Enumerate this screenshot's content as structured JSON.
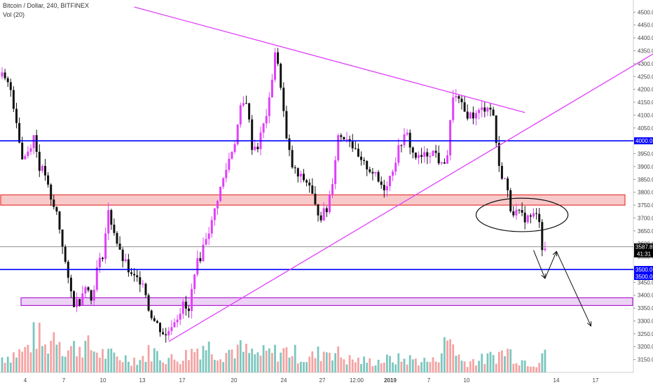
{
  "header": {
    "title": "Bitcoin / Dollar, 240, BITFINEX",
    "volume_label": "Vol (20)"
  },
  "colors": {
    "up_candle": "#e040fb",
    "down_candle": "#111111",
    "volume_up": "#7cc7bf",
    "volume_down": "#f4a3a3",
    "trendline": "#e040fb",
    "support_line": "#0000ff",
    "resistance_zone_border": "#e53935",
    "resistance_zone_fill": "#f8c9c9",
    "support_zone_border": "#b020d0",
    "support_zone_fill": "#ecd2f5",
    "price_label_bg": "#000000",
    "level_label_bg": "#0000ff"
  },
  "chart_data": {
    "type": "candlestick",
    "symbol": "Bitcoin / Dollar",
    "interval": "240",
    "exchange": "BITFINEX",
    "ylim": [
      3100,
      4520
    ],
    "y_ticks": [
      3150,
      3200,
      3250,
      3300,
      3350,
      3400,
      3450,
      3500,
      3550,
      3600,
      3650,
      3700,
      3750,
      3800,
      3850,
      3900,
      3950,
      4000,
      4050,
      4100,
      4150,
      4200,
      4250,
      4300,
      4350,
      4400,
      4450,
      4500
    ],
    "x_ticks": [
      "4",
      "7",
      "10",
      "13",
      "17",
      "20",
      "24",
      "27",
      "12:00",
      "2019",
      "7",
      "10",
      "14",
      "17"
    ],
    "horizontal_levels": [
      {
        "label": "4000.0",
        "value": 4000
      },
      {
        "label": "3500.0",
        "value": 3500
      }
    ],
    "level_label_extra": "3500.0",
    "current_price": {
      "label": "3587.8",
      "value": 3587.8,
      "countdown": "41:31"
    },
    "zones": [
      {
        "name": "resistance",
        "from": 3750,
        "to": 3790
      },
      {
        "name": "support",
        "from": 3360,
        "to": 3390
      }
    ],
    "trendlines": [
      {
        "from": {
          "bar": 46,
          "price": 4520
        },
        "to": {
          "bar": 182,
          "price": 4110
        }
      },
      {
        "from": {
          "bar": 58,
          "price": 3220
        },
        "to": {
          "bar": 227,
          "price": 4340
        }
      }
    ],
    "projection_path": [
      {
        "bar": 185,
        "price": 3575
      },
      {
        "bar": 189,
        "price": 3465
      },
      {
        "bar": 193,
        "price": 3570
      },
      {
        "bar": 205,
        "price": 3280
      }
    ],
    "highlight_ellipse": {
      "center_bar": 181,
      "center_price": 3712,
      "bar_radius": 16,
      "price_radius": 65
    },
    "close_anchors": [
      [
        0,
        4250
      ],
      [
        3,
        4200
      ],
      [
        5,
        4080
      ],
      [
        7,
        3930
      ],
      [
        9,
        3960
      ],
      [
        11,
        4020
      ],
      [
        13,
        3900
      ],
      [
        15,
        3870
      ],
      [
        17,
        3760
      ],
      [
        19,
        3720
      ],
      [
        21,
        3600
      ],
      [
        23,
        3450
      ],
      [
        25,
        3370
      ],
      [
        27,
        3380
      ],
      [
        29,
        3450
      ],
      [
        31,
        3380
      ],
      [
        33,
        3500
      ],
      [
        35,
        3560
      ],
      [
        37,
        3720
      ],
      [
        39,
        3650
      ],
      [
        41,
        3560
      ],
      [
        43,
        3520
      ],
      [
        45,
        3470
      ],
      [
        47,
        3460
      ],
      [
        49,
        3460
      ],
      [
        51,
        3350
      ],
      [
        53,
        3300
      ],
      [
        55,
        3270
      ],
      [
        57,
        3240
      ],
      [
        59,
        3290
      ],
      [
        61,
        3320
      ],
      [
        63,
        3360
      ],
      [
        65,
        3330
      ],
      [
        67,
        3500
      ],
      [
        69,
        3550
      ],
      [
        71,
        3630
      ],
      [
        73,
        3680
      ],
      [
        75,
        3780
      ],
      [
        77,
        3850
      ],
      [
        79,
        3930
      ],
      [
        81,
        4000
      ],
      [
        83,
        4120
      ],
      [
        85,
        4160
      ],
      [
        87,
        3980
      ],
      [
        89,
        3980
      ],
      [
        91,
        4060
      ],
      [
        93,
        4150
      ],
      [
        95,
        4350
      ],
      [
        97,
        4220
      ],
      [
        99,
        4000
      ],
      [
        101,
        3900
      ],
      [
        103,
        3860
      ],
      [
        105,
        3850
      ],
      [
        107,
        3830
      ],
      [
        109,
        3740
      ],
      [
        111,
        3710
      ],
      [
        113,
        3730
      ],
      [
        115,
        3850
      ],
      [
        117,
        4020
      ],
      [
        119,
        4020
      ],
      [
        121,
        4010
      ],
      [
        123,
        3950
      ],
      [
        125,
        3910
      ],
      [
        127,
        3900
      ],
      [
        129,
        3880
      ],
      [
        131,
        3840
      ],
      [
        133,
        3820
      ],
      [
        135,
        3860
      ],
      [
        137,
        3930
      ],
      [
        139,
        4000
      ],
      [
        141,
        4020
      ],
      [
        143,
        3950
      ],
      [
        145,
        3930
      ],
      [
        147,
        3940
      ],
      [
        149,
        3960
      ],
      [
        151,
        3950
      ],
      [
        153,
        3900
      ],
      [
        155,
        3950
      ],
      [
        157,
        4180
      ],
      [
        159,
        4150
      ],
      [
        161,
        4110
      ],
      [
        163,
        4100
      ],
      [
        165,
        4100
      ],
      [
        167,
        4120
      ],
      [
        169,
        4140
      ],
      [
        171,
        4100
      ],
      [
        173,
        3890
      ],
      [
        175,
        3850
      ],
      [
        177,
        3740
      ],
      [
        179,
        3720
      ],
      [
        181,
        3705
      ],
      [
        183,
        3700
      ],
      [
        185,
        3710
      ],
      [
        187,
        3700
      ],
      [
        188,
        3590
      ]
    ],
    "volume_anchors": [
      [
        0,
        0.35
      ],
      [
        8,
        0.5
      ],
      [
        12,
        0.9
      ],
      [
        15,
        0.55
      ],
      [
        19,
        1.0
      ],
      [
        22,
        0.5
      ],
      [
        28,
        0.65
      ],
      [
        34,
        0.45
      ],
      [
        40,
        0.35
      ],
      [
        48,
        0.3
      ],
      [
        52,
        0.5
      ],
      [
        56,
        0.35
      ],
      [
        60,
        0.3
      ],
      [
        64,
        0.4
      ],
      [
        70,
        0.65
      ],
      [
        76,
        0.45
      ],
      [
        82,
        0.55
      ],
      [
        88,
        0.4
      ],
      [
        94,
        0.45
      ],
      [
        100,
        0.5
      ],
      [
        106,
        0.3
      ],
      [
        114,
        0.55
      ],
      [
        120,
        0.3
      ],
      [
        128,
        0.25
      ],
      [
        136,
        0.3
      ],
      [
        142,
        0.3
      ],
      [
        150,
        0.25
      ],
      [
        156,
        0.8
      ],
      [
        160,
        0.25
      ],
      [
        168,
        0.3
      ],
      [
        176,
        0.5
      ],
      [
        180,
        0.3
      ],
      [
        186,
        0.2
      ],
      [
        188,
        0.55
      ]
    ],
    "bar_count": 189,
    "xlabel": "",
    "ylabel": ""
  }
}
